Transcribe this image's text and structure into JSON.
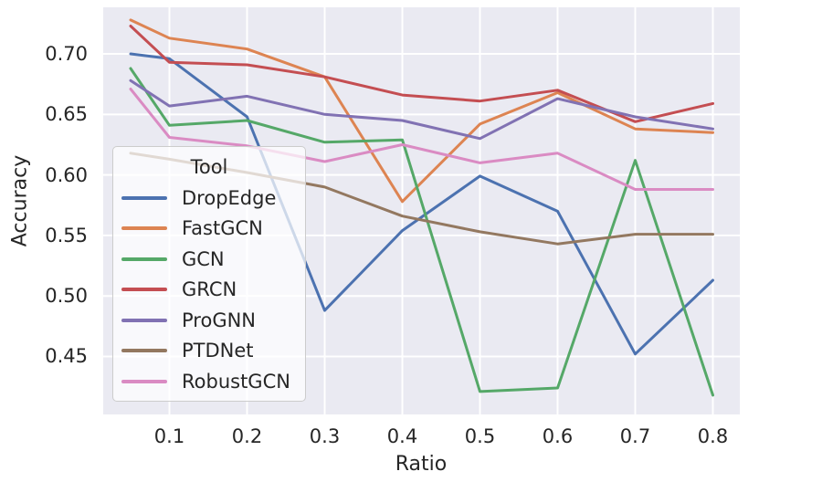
{
  "chart_data": {
    "type": "line",
    "title": "",
    "xlabel": "Ratio",
    "ylabel": "Accuracy",
    "grid": true,
    "plot_background": "#EAEAF2",
    "gridline_color": "#ffffff",
    "text_color": "#262626",
    "x": [
      0.05,
      0.1,
      0.2,
      0.3,
      0.4,
      0.5,
      0.6,
      0.7,
      0.8
    ],
    "series": [
      {
        "name": "DropEdge",
        "color": "#4C72B0",
        "values": [
          0.7,
          0.696,
          0.648,
          0.488,
          0.554,
          0.599,
          0.57,
          0.452,
          0.513
        ]
      },
      {
        "name": "FastGCN",
        "color": "#DD8452",
        "values": [
          0.728,
          0.713,
          0.704,
          0.681,
          0.578,
          0.642,
          0.668,
          0.638,
          0.635
        ]
      },
      {
        "name": "GCN",
        "color": "#55A868",
        "values": [
          0.688,
          0.641,
          0.645,
          0.627,
          0.629,
          0.421,
          0.424,
          0.612,
          0.418
        ]
      },
      {
        "name": "GRCN",
        "color": "#C44E52",
        "values": [
          0.723,
          0.693,
          0.691,
          0.681,
          0.666,
          0.661,
          0.67,
          0.644,
          0.659
        ]
      },
      {
        "name": "ProGNN",
        "color": "#8172B3",
        "values": [
          0.678,
          0.657,
          0.665,
          0.65,
          0.645,
          0.63,
          0.663,
          0.648,
          0.638
        ]
      },
      {
        "name": "PTDNet",
        "color": "#937860",
        "values": [
          0.618,
          0.613,
          0.602,
          0.59,
          0.566,
          0.553,
          0.543,
          0.551,
          0.551
        ]
      },
      {
        "name": "RobustGCN",
        "color": "#DA8BC3",
        "values": [
          0.671,
          0.631,
          0.624,
          0.611,
          0.625,
          0.61,
          0.618,
          0.588,
          0.588
        ]
      }
    ],
    "xticks": [
      0.1,
      0.2,
      0.3,
      0.4,
      0.5,
      0.6,
      0.7,
      0.8
    ],
    "xtick_labels": [
      "0.1",
      "0.2",
      "0.3",
      "0.4",
      "0.5",
      "0.6",
      "0.7",
      "0.8"
    ],
    "yticks": [
      0.45,
      0.5,
      0.55,
      0.6,
      0.65,
      0.7
    ],
    "ytick_labels": [
      "0.45",
      "0.50",
      "0.55",
      "0.60",
      "0.65",
      "0.70"
    ],
    "axes": {
      "x_min": 0.0147,
      "x_max": 0.8347,
      "y_min": 0.4021,
      "y_max": 0.7385
    },
    "legend": {
      "title": "Tool",
      "position": "lower-left"
    }
  }
}
